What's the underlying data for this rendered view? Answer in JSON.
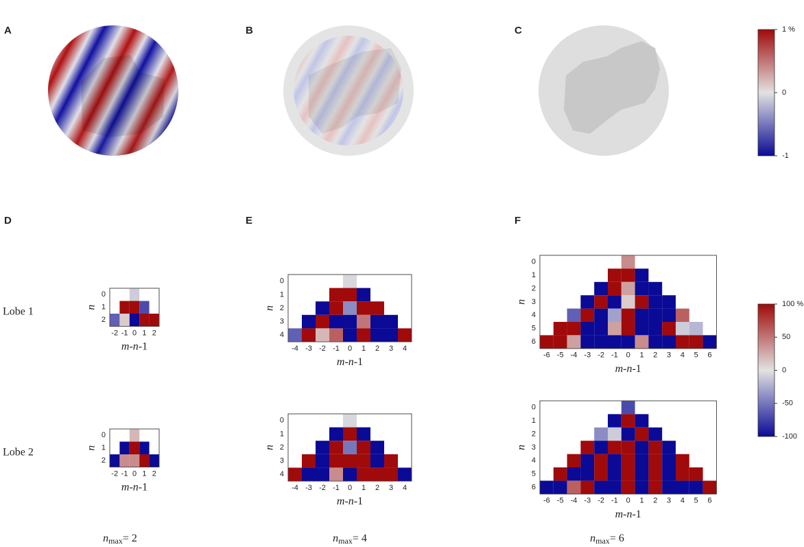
{
  "panel_labels": [
    "A",
    "B",
    "C",
    "D",
    "E",
    "F"
  ],
  "row_labels": [
    "Lobe 1",
    "Lobe 2"
  ],
  "axis_y_label": "n",
  "axis_x_label": {
    "m": "m",
    "n": "-n",
    "rest": "-1"
  },
  "colorbar_top": {
    "ticks": [
      {
        "value": 1,
        "label": "1 %"
      },
      0,
      -1
    ]
  },
  "colorbar_bottom": {
    "ticks": [
      {
        "value": 100,
        "label": "100 %"
      },
      50,
      0,
      -50,
      -100
    ]
  },
  "columns": [
    {
      "caption": {
        "symbol": "n",
        "sub": "max",
        "rest": "= 2"
      },
      "xticks": [
        -2,
        -1,
        0,
        1,
        2
      ],
      "yticks": [
        0,
        1,
        2
      ],
      "lobes": [
        [
          [
            -10
          ],
          [
            100,
            100,
            -70
          ],
          [
            -60,
            10,
            -100,
            100,
            100
          ]
        ],
        [
          [
            20
          ],
          [
            -100,
            100,
            -100
          ],
          [
            -100,
            40,
            40,
            100,
            -100
          ]
        ]
      ]
    },
    {
      "caption": {
        "symbol": "n",
        "sub": "max",
        "rest": "= 4"
      },
      "xticks": [
        -4,
        -3,
        -2,
        -1,
        0,
        1,
        2,
        3,
        4
      ],
      "yticks": [
        0,
        1,
        2,
        3,
        4
      ],
      "lobes": [
        [
          [
            -5
          ],
          [
            100,
            100,
            -100
          ],
          [
            -100,
            100,
            -40,
            100,
            100
          ],
          [
            -100,
            100,
            -100,
            -100,
            50,
            -100,
            -100
          ],
          [
            -60,
            100,
            20,
            60,
            -100,
            100,
            -100,
            -100,
            100
          ]
        ],
        [
          [
            -5
          ],
          [
            -100,
            100,
            -100
          ],
          [
            -100,
            100,
            -50,
            100,
            -100
          ],
          [
            100,
            -100,
            100,
            100,
            100,
            -100,
            100
          ],
          [
            100,
            -100,
            -100,
            40,
            -100,
            100,
            100,
            100,
            -100
          ]
        ]
      ]
    },
    {
      "caption": {
        "symbol": "n",
        "sub": "max",
        "rest": "= 6"
      },
      "xticks": [
        -6,
        -5,
        -4,
        -3,
        -2,
        -1,
        0,
        1,
        2,
        3,
        4,
        5,
        6
      ],
      "yticks": [
        0,
        1,
        2,
        3,
        4,
        5,
        6
      ],
      "lobes": [
        [
          [
            40
          ],
          [
            100,
            100,
            -100
          ],
          [
            -100,
            100,
            30,
            -100,
            -100
          ],
          [
            -100,
            100,
            -100,
            10,
            100,
            -100,
            -100
          ],
          [
            -60,
            100,
            -100,
            -30,
            100,
            -100,
            -100,
            -100,
            60
          ],
          [
            100,
            100,
            -100,
            -100,
            30,
            100,
            -100,
            -100,
            100,
            -10,
            -20
          ],
          [
            100,
            100,
            30,
            -100,
            -100,
            -100,
            -100,
            40,
            -100,
            -100,
            100,
            100,
            -100
          ]
        ],
        [
          [
            -70
          ],
          [
            -100,
            100,
            -100
          ],
          [
            -40,
            -10,
            -100,
            100,
            -100
          ],
          [
            100,
            -100,
            100,
            100,
            -100,
            100,
            -100
          ],
          [
            100,
            -100,
            100,
            -100,
            100,
            -100,
            100,
            -100,
            100
          ],
          [
            100,
            -100,
            -100,
            100,
            -100,
            100,
            -100,
            100,
            -100,
            100,
            100
          ],
          [
            -100,
            -100,
            60,
            100,
            -100,
            -100,
            100,
            -100,
            100,
            -100,
            -100,
            -100,
            100
          ]
        ]
      ]
    }
  ]
}
